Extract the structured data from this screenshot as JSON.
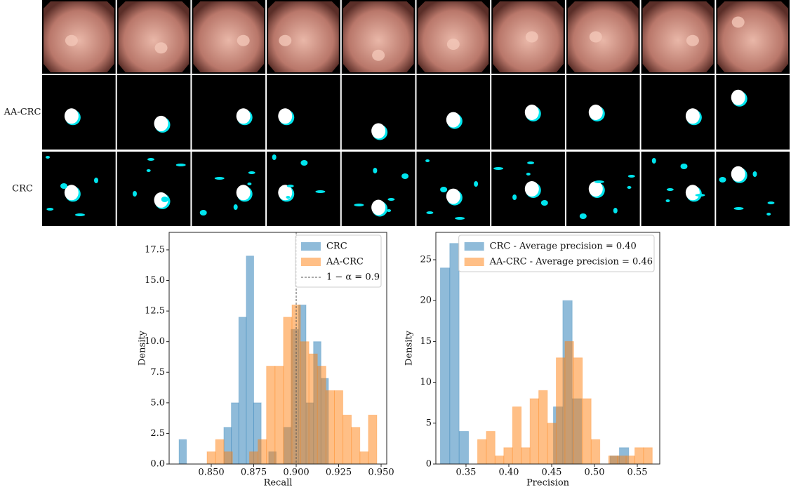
{
  "image_grid": {
    "row_labels": [
      "AA-CRC",
      "CRC"
    ]
  },
  "chart_data": [
    {
      "type": "histogram",
      "xlabel": "Recall",
      "ylabel": "Density",
      "xlim": [
        0.8252,
        0.9533
      ],
      "ylim": [
        0,
        18.93
      ],
      "xticks": [
        {
          "value": 0.85,
          "label": "0.850"
        },
        0.875,
        {
          "value": 0.9,
          "label": "0.900"
        },
        0.925,
        {
          "value": 0.95,
          "label": "0.950"
        }
      ],
      "yticks": [
        {
          "value": 0,
          "label": "0.0"
        },
        2.5,
        {
          "value": 5,
          "label": "5.0"
        },
        7.5,
        {
          "value": 10,
          "label": "10.0"
        },
        12.5,
        {
          "value": 15,
          "label": "15.0"
        },
        17.5
      ],
      "legend": "upper right",
      "vline": {
        "x": 0.9,
        "label": "1 − α = 0.9",
        "color": "#555555"
      },
      "series": [
        {
          "name": "CRC",
          "color": "#1f77b4",
          "bins": [
            0.831,
            0.8354,
            0.8398,
            0.8442,
            0.8486,
            0.853,
            0.8574,
            0.8618,
            0.8662,
            0.8706,
            0.875,
            0.8794,
            0.8838,
            0.8882,
            0.8926,
            0.897,
            0.9014,
            0.9058,
            0.9102,
            0.9146,
            0.919
          ],
          "values": [
            2,
            0,
            0,
            0,
            0,
            0,
            3,
            5,
            12,
            17,
            5,
            0,
            1,
            0,
            3,
            11,
            13,
            5,
            10,
            7
          ]
        },
        {
          "name": "AA-CRC",
          "color": "#ff7f0e",
          "bins": [
            0.8475,
            0.8525,
            0.8575,
            0.8625,
            0.8675,
            0.8725,
            0.8775,
            0.8825,
            0.8875,
            0.8925,
            0.8975,
            0.9025,
            0.9075,
            0.9125,
            0.9175,
            0.9225,
            0.9275,
            0.9325,
            0.9375,
            0.9425,
            0.9475
          ],
          "values": [
            1,
            2,
            1,
            0,
            0,
            1,
            2,
            8,
            8,
            12,
            13,
            10,
            9,
            8,
            6,
            6,
            4,
            3,
            1,
            4
          ]
        }
      ]
    },
    {
      "type": "histogram",
      "xlabel": "Precision",
      "ylabel": "Density",
      "xlim": [
        0.3148,
        0.5762
      ],
      "ylim": [
        0,
        28.35
      ],
      "xticks": [
        0.35,
        {
          "value": 0.4,
          "label": "0.40"
        },
        0.45,
        {
          "value": 0.5,
          "label": "0.50"
        },
        0.55
      ],
      "yticks": [
        0,
        5,
        10,
        15,
        20,
        25
      ],
      "legend": "upper right",
      "series": [
        {
          "name": "CRC - Average precision = 0.40",
          "color": "#1f77b4",
          "bins": [
            0.32,
            0.331,
            0.342,
            0.353,
            0.364,
            0.375,
            0.386,
            0.397,
            0.408,
            0.419,
            0.43,
            0.441,
            0.452,
            0.463,
            0.474,
            0.485,
            0.496,
            0.507,
            0.518,
            0.529,
            0.54
          ],
          "values": [
            24,
            27,
            4,
            0,
            0,
            0,
            0,
            0,
            0,
            0,
            0,
            0,
            7,
            20,
            8,
            0,
            0,
            0,
            1,
            2
          ]
        },
        {
          "name": "AA-CRC - Average precision = 0.46",
          "color": "#ff7f0e",
          "bins": [
            0.3635,
            0.3737,
            0.3839,
            0.3941,
            0.4043,
            0.4145,
            0.4247,
            0.4349,
            0.4451,
            0.4553,
            0.4655,
            0.4757,
            0.4859,
            0.4961,
            0.5063,
            0.5165,
            0.5267,
            0.5369,
            0.5471,
            0.5573,
            0.5675
          ],
          "values": [
            3,
            4,
            1,
            2,
            7,
            2,
            8,
            9,
            5,
            13,
            15,
            13,
            8,
            3,
            0,
            1,
            1,
            1,
            2,
            2
          ]
        }
      ]
    }
  ]
}
